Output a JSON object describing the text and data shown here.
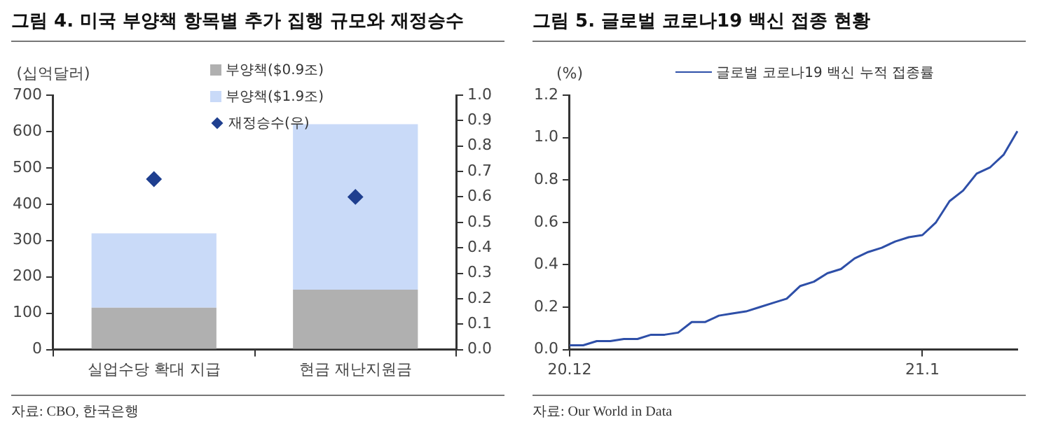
{
  "chart_data": [
    {
      "type": "bar",
      "title": "그림 4. 미국 부양책 항목별 추가 집행 규모와 재정승수",
      "ylabel": "(십억달러)",
      "categories": [
        "실업수당 확대 지급",
        "현금 재난지원금"
      ],
      "stacked": true,
      "series": [
        {
          "name": "부양책($0.9조)",
          "color": "#b0b0b0",
          "values": [
            115,
            165
          ]
        },
        {
          "name": "부양책($1.9조)",
          "color": "#c9daf8",
          "values": [
            205,
            455
          ]
        },
        {
          "name": "재정승수(우)",
          "type": "scatter",
          "axis": "y2",
          "color": "#1f3f8f",
          "x": [
            "실업수당 확대 지급",
            "현금 재난지원금"
          ],
          "values": [
            0.67,
            0.6
          ]
        }
      ],
      "marker": "diamond",
      "ylim": [
        0,
        700
      ],
      "yticks": [
        0,
        100,
        200,
        300,
        400,
        500,
        600,
        700
      ],
      "y2lim": [
        0,
        1
      ],
      "y2ticks": [
        {
          "value": 0,
          "label": "0.0"
        },
        0.1,
        0.2,
        0.3,
        0.4,
        0.5,
        0.6,
        0.7,
        0.8,
        0.9,
        {
          "value": 1,
          "label": "1.0"
        }
      ],
      "grid": false,
      "legend": "top",
      "annotations": [
        "자료: CBO, 한국은행"
      ]
    },
    {
      "type": "line",
      "title": "그림 5. 글로벌 코로나19 백신 접종 현황",
      "ylabel": "(%)",
      "series": [
        {
          "name": "글로벌 코로나19 백신 누적 접종률",
          "color": "#2e4fa8",
          "values": [
            0.02,
            0.02,
            0.04,
            0.04,
            0.05,
            0.05,
            0.07,
            0.07,
            0.08,
            0.13,
            0.13,
            0.16,
            0.17,
            0.18,
            0.2,
            0.22,
            0.24,
            0.3,
            0.32,
            0.36,
            0.38,
            0.43,
            0.46,
            0.48,
            0.51,
            0.53,
            0.54,
            0.6,
            0.7,
            0.75,
            0.83,
            0.86,
            0.92,
            1.03
          ]
        }
      ],
      "categories": [
        "20.12",
        null,
        null,
        null,
        null,
        null,
        null,
        null,
        null,
        null,
        null,
        null,
        null,
        null,
        null,
        null,
        null,
        null,
        null,
        null,
        null,
        null,
        null,
        null,
        null,
        null,
        "21.1",
        null,
        null,
        null,
        null,
        null,
        null,
        null
      ],
      "ylim": [
        0,
        1.2
      ],
      "yticks": [
        {
          "value": 0,
          "label": "0.0"
        },
        0.2,
        0.4,
        0.6,
        0.8,
        {
          "value": 1,
          "label": "1.0"
        },
        1.2
      ],
      "marker": "none",
      "grid": false,
      "legend": "top",
      "annotations": [
        "자료: Our World in Data"
      ]
    }
  ]
}
